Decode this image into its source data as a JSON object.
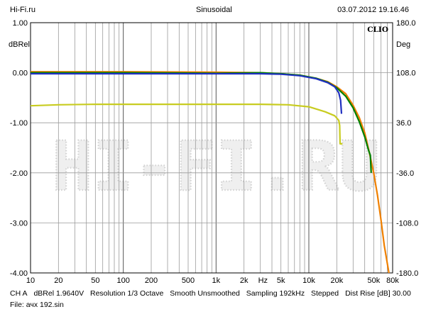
{
  "header": {
    "site": "Hi-Fi.ru",
    "signal": "Sinusoidal",
    "timestamp": "03.07.2012 19.16.46"
  },
  "footer": {
    "channel": "CH A",
    "reference": "dBRel 1.9640V",
    "resolution": "Resolution 1/3 Octave",
    "smooth": "Smooth Unsmoothed",
    "sampling": "Sampling 192kHz",
    "stepped": "Stepped",
    "dist_rise": "Dist Rise [dB] 30.00",
    "file": "File: ачх 192.sin"
  },
  "watermark": "HI-FI.RU",
  "chart_data": {
    "type": "line",
    "brand": "CLIO",
    "xscale": "log",
    "xlim": [
      10,
      80000
    ],
    "ylim": [
      -4,
      1
    ],
    "y2lim": [
      -180,
      180
    ],
    "ylabel": "dBRel",
    "y2label": "Deg",
    "xunit": "Hz",
    "grid": true,
    "x_ticks": [
      {
        "v": 10,
        "label": "10"
      },
      {
        "v": 20,
        "label": "20"
      },
      {
        "v": 50,
        "label": "50"
      },
      {
        "v": 100,
        "label": "100"
      },
      {
        "v": 200,
        "label": "200"
      },
      {
        "v": 500,
        "label": "500"
      },
      {
        "v": 1000,
        "label": "1k"
      },
      {
        "v": 2000,
        "label": "2k"
      },
      {
        "v": 5000,
        "label": "5k"
      },
      {
        "v": 10000,
        "label": "10k"
      },
      {
        "v": 20000,
        "label": "20k"
      },
      {
        "v": 50000,
        "label": "50k"
      },
      {
        "v": 80000,
        "label": "80k"
      }
    ],
    "y_ticks": [
      {
        "v": 1,
        "label": "1.00"
      },
      {
        "v": 0,
        "label": "0.00"
      },
      {
        "v": -1,
        "label": "-1.00"
      },
      {
        "v": -2,
        "label": "-2.00"
      },
      {
        "v": -3,
        "label": "-3.00"
      },
      {
        "v": -4,
        "label": "-4.00"
      }
    ],
    "y2_ticks": [
      {
        "v": 180,
        "label": "180.0"
      },
      {
        "v": 108,
        "label": "108.0"
      },
      {
        "v": 36,
        "label": "36.0"
      },
      {
        "v": -36,
        "label": "-36.0"
      },
      {
        "v": -108,
        "label": "-108.0"
      },
      {
        "v": -180,
        "label": "-180.0"
      }
    ],
    "series": [
      {
        "color": "#f08000",
        "points": [
          [
            10,
            0.02
          ],
          [
            100,
            0.02
          ],
          [
            1000,
            0.01
          ],
          [
            3000,
            0.0
          ],
          [
            5000,
            -0.02
          ],
          [
            8000,
            -0.05
          ],
          [
            12000,
            -0.11
          ],
          [
            16000,
            -0.18
          ],
          [
            20000,
            -0.28
          ],
          [
            25000,
            -0.42
          ],
          [
            30000,
            -0.65
          ],
          [
            35000,
            -0.9
          ],
          [
            40000,
            -1.2
          ],
          [
            45000,
            -1.6
          ],
          [
            50000,
            -2.0
          ],
          [
            55000,
            -2.45
          ],
          [
            60000,
            -2.95
          ],
          [
            65000,
            -3.45
          ],
          [
            70000,
            -3.8
          ],
          [
            73000,
            -4.0
          ]
        ]
      },
      {
        "color": "#008000",
        "points": [
          [
            10,
            0.0
          ],
          [
            100,
            0.0
          ],
          [
            1000,
            -0.01
          ],
          [
            3000,
            0.0
          ],
          [
            5000,
            -0.02
          ],
          [
            8000,
            -0.05
          ],
          [
            12000,
            -0.11
          ],
          [
            16000,
            -0.19
          ],
          [
            20000,
            -0.3
          ],
          [
            25000,
            -0.47
          ],
          [
            30000,
            -0.7
          ],
          [
            35000,
            -0.98
          ],
          [
            40000,
            -1.28
          ],
          [
            44000,
            -1.55
          ],
          [
            46000,
            -1.65
          ],
          [
            47000,
            -2.0
          ]
        ]
      },
      {
        "color": "#2030c0",
        "points": [
          [
            10,
            -0.02
          ],
          [
            100,
            -0.02
          ],
          [
            1000,
            -0.02
          ],
          [
            3000,
            -0.02
          ],
          [
            5000,
            -0.03
          ],
          [
            8000,
            -0.06
          ],
          [
            12000,
            -0.12
          ],
          [
            16000,
            -0.2
          ],
          [
            19000,
            -0.28
          ],
          [
            21000,
            -0.4
          ],
          [
            22000,
            -0.55
          ],
          [
            22500,
            -0.82
          ]
        ]
      },
      {
        "color": "#c8cc20",
        "points": [
          [
            10,
            -0.66
          ],
          [
            20,
            -0.64
          ],
          [
            50,
            -0.63
          ],
          [
            100,
            -0.63
          ],
          [
            1000,
            -0.63
          ],
          [
            3000,
            -0.63
          ],
          [
            6000,
            -0.64
          ],
          [
            10000,
            -0.68
          ],
          [
            15000,
            -0.78
          ],
          [
            19000,
            -0.86
          ],
          [
            21000,
            -0.95
          ],
          [
            21500,
            -1.05
          ],
          [
            21700,
            -1.42
          ],
          [
            23000,
            -1.42
          ]
        ]
      }
    ]
  }
}
